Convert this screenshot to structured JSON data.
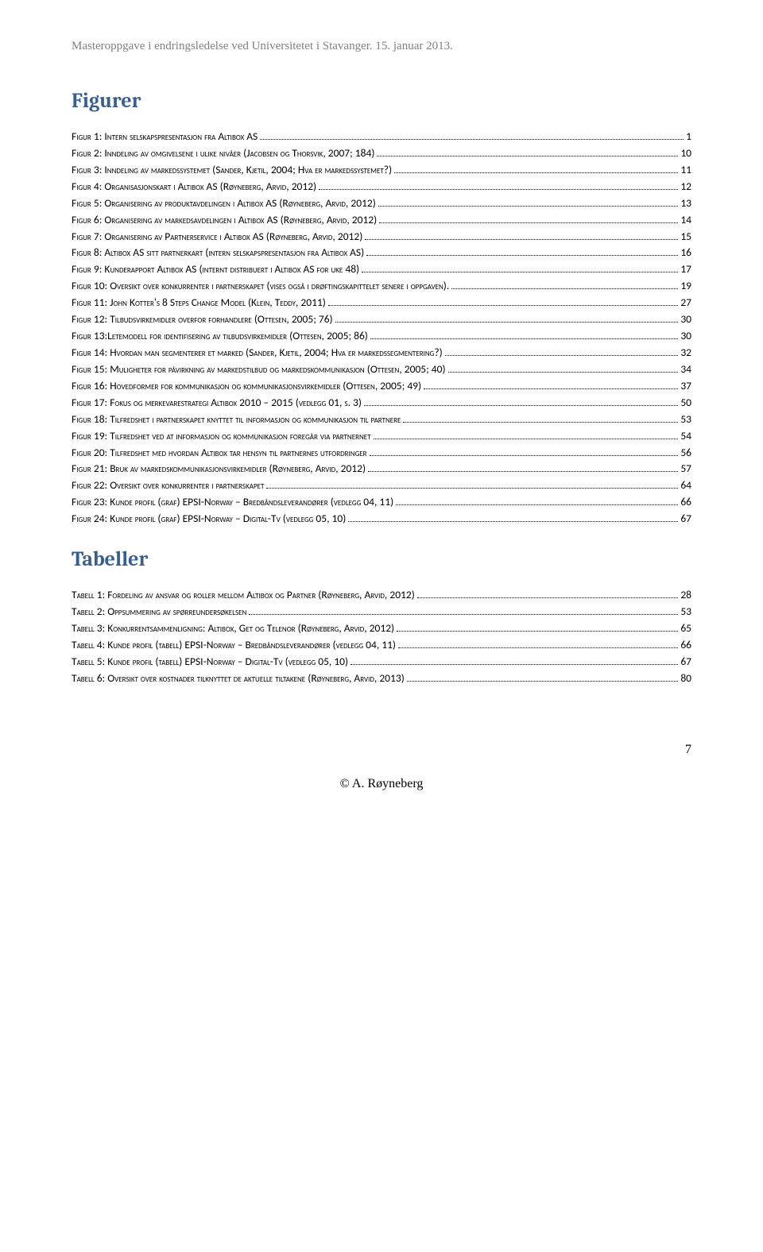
{
  "header": "Masteroppgave i endringsledelse ved Universitetet i Stavanger. 15. januar 2013.",
  "figures_title": "Figurer",
  "tables_title": "Tabeller",
  "figures": [
    {
      "label": "Figur 1: Intern selskapspresentasjon fra Altibox AS",
      "page": "1"
    },
    {
      "label": "Figur 2: Inndeling av omgivelsene i ulike nivåer (Jacobsen og Thorsvik, 2007; 184)",
      "page": "10"
    },
    {
      "label": "Figur 3: Inndeling av markedssystemet (Sander, Kjetil, 2004; Hva er markedssystemet?)",
      "page": "11"
    },
    {
      "label": "Figur 4: Organisasjonskart i Altibox AS (Røyneberg, Arvid, 2012)",
      "page": "12"
    },
    {
      "label": "Figur 5: Organisering av produktavdelingen i Altibox AS (Røyneberg, Arvid, 2012)",
      "page": "13"
    },
    {
      "label": "Figur 6: Organisering av markedsavdelingen i Altibox AS (Røyneberg, Arvid, 2012)",
      "page": "14"
    },
    {
      "label": "Figur 7: Organisering av Partnerservice i Altibox AS (Røyneberg, Arvid, 2012)",
      "page": "15"
    },
    {
      "label": "Figur 8: Altibox AS sitt partnerkart (intern selskapspresentasjon fra Altibox AS)",
      "page": "16"
    },
    {
      "label": "Figur 9: Kunderapport Altibox AS (internt distribuert i Altibox AS for uke 48)",
      "page": "17"
    },
    {
      "label": "Figur 10: Oversikt over konkurrenter i partnerskapet (vises også i drøftingskapittelet senere i oppgaven). ",
      "page": "19"
    },
    {
      "label": "Figur 11: John Kotter's 8 Steps Change Model (Klein, Teddy, 2011)",
      "page": "27"
    },
    {
      "label": "Figur 12: Tilbudsvirkemidler overfor forhandlere (Ottesen, 2005; 76)",
      "page": "30"
    },
    {
      "label": "Figur 13:Letemodell for identifisering av tilbudsvirkemidler (Ottesen, 2005; 86)",
      "page": "30"
    },
    {
      "label": "Figur 14: Hvordan man segmenterer et marked (Sander, Kjetil, 2004; Hva er markedssegmentering?)",
      "page": "32"
    },
    {
      "label": "Figur 15: Muligheter for påvirkning av markedstilbud og markedskommunikasjon (Ottesen, 2005; 40)",
      "page": "34"
    },
    {
      "label": "Figur 16: Hovedformer for kommunikasjon og kommunikasjonsvirkemidler (Ottesen, 2005; 49)",
      "page": "37"
    },
    {
      "label": "Figur 17: Fokus og merkevarestrategi Altibox 2010 – 2015 (vedlegg 01, s. 3)",
      "page": "50"
    },
    {
      "label": "Figur 18: Tilfredshet i partnerskapet knyttet til informasjon og kommunikasjon til partnere",
      "page": "53"
    },
    {
      "label": "Figur 19: Tilfredshet ved at informasjon og kommunikasjon foregår via partnernet",
      "page": "54"
    },
    {
      "label": "Figur 20: Tilfredshet med hvordan Altibox tar hensyn til partnernes utfordringer",
      "page": "56"
    },
    {
      "label": "Figur 21: Bruk av markedskommunikasjonsvirkemidler (Røyneberg, Arvid, 2012)",
      "page": "57"
    },
    {
      "label": "Figur 22: Oversikt over konkurrenter i partnerskapet",
      "page": "64"
    },
    {
      "label": "Figur 23: Kunde profil (graf) EPSI-Norway – Bredbåndsleverandører (vedlegg 04, 11)",
      "page": "66"
    },
    {
      "label": "Figur 24: Kunde profil (graf) EPSI-Norway – Digital-Tv (vedlegg 05, 10)",
      "page": "67"
    }
  ],
  "tables": [
    {
      "label": "Tabell 1: Fordeling av ansvar og roller mellom Altibox og Partner (Røyneberg, Arvid, 2012)",
      "page": "28"
    },
    {
      "label": "Tabell 2: Oppsummering av spørreundersøkelsen",
      "page": "53"
    },
    {
      "label": "Tabell 3: Konkurrentsammenligning: Altibox, Get og Telenor (Røyneberg, Arvid, 2012)",
      "page": "65"
    },
    {
      "label": "Tabell 4: Kunde profil (tabell) EPSI-Norway – Bredbåndsleverandører (vedlegg 04, 11)",
      "page": "66"
    },
    {
      "label": "Tabell 5: Kunde profil (tabell) EPSI-Norway – Digital-Tv (vedlegg 05, 10)",
      "page": "67"
    },
    {
      "label": "Tabell 6: Oversikt over kostnader tilknyttet de aktuelle tiltakene (Røyneberg, Arvid, 2013)",
      "page": "80"
    }
  ],
  "page_number": "7",
  "footer_text": "© A. Røyneberg"
}
